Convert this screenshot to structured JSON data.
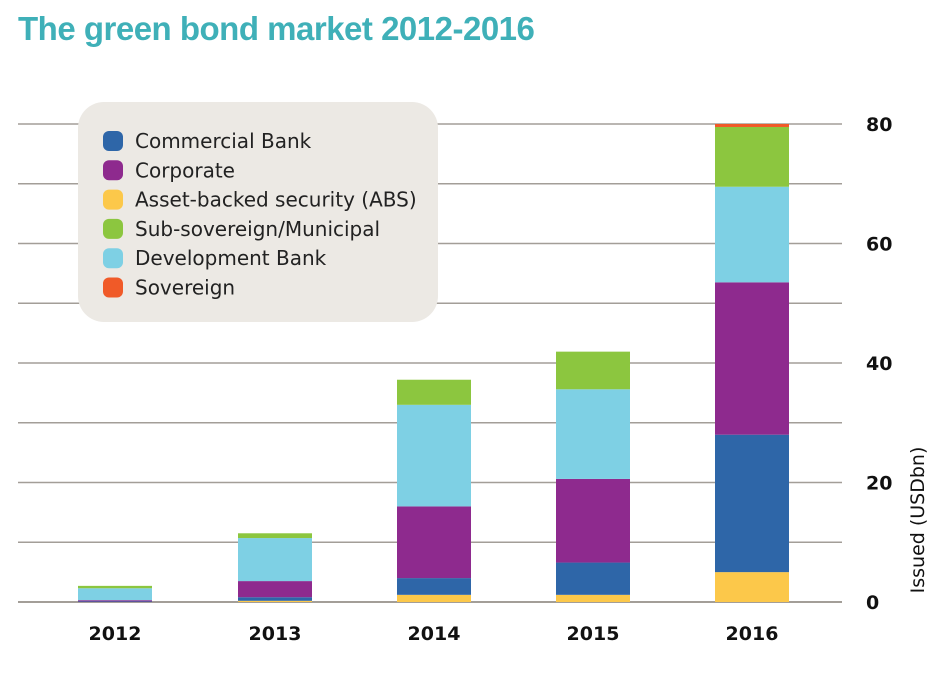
{
  "chart_data": {
    "type": "bar",
    "stacked": true,
    "title": "The green bond market 2012-2016",
    "ylabel": "Issued (USDbn)",
    "xlabel": "",
    "ylim": [
      0,
      80
    ],
    "yticks": [
      0,
      20,
      40,
      60,
      80
    ],
    "grid": true,
    "y_axis_position": "right",
    "legend_position": "top-left",
    "categories": [
      "2012",
      "2013",
      "2014",
      "2015",
      "2016"
    ],
    "series": [
      {
        "name": "Asset-backed security (ABS)",
        "color": "#fcc84a",
        "values": [
          0,
          0.2,
          1.2,
          1.2,
          5.0
        ]
      },
      {
        "name": "Commercial Bank",
        "color": "#2e66a8",
        "values": [
          0.1,
          0.6,
          2.8,
          5.4,
          23.0
        ]
      },
      {
        "name": "Corporate",
        "color": "#8e2a8e",
        "values": [
          0.2,
          2.7,
          12.0,
          14.0,
          25.5
        ]
      },
      {
        "name": "Development Bank",
        "color": "#7ed0e4",
        "values": [
          2.0,
          7.2,
          17.0,
          15.0,
          16.0
        ]
      },
      {
        "name": "Sub-sovereign/Municipal",
        "color": "#8cc63f",
        "values": [
          0.4,
          0.8,
          4.2,
          6.3,
          10.0
        ]
      },
      {
        "name": "Sovereign",
        "color": "#f05a28",
        "values": [
          0,
          0,
          0,
          0,
          0.5
        ]
      }
    ],
    "legend_order": [
      "Commercial Bank",
      "Corporate",
      "Asset-backed security (ABS)",
      "Sub-sovereign/Municipal",
      "Development Bank",
      "Sovereign"
    ]
  }
}
